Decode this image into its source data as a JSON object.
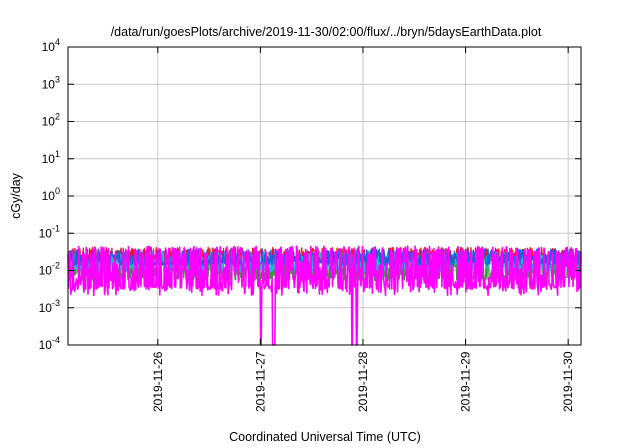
{
  "chart_data": {
    "type": "line",
    "title": "/data/run/goesPlots/archive/2019-11-30/02:00/flux/../bryn/5daysEarthData.plot",
    "xlabel": "Coordinated Universal Time (UTC)",
    "ylabel": "cGy/day",
    "yscale": "log",
    "ylim": [
      0.0001,
      10000
    ],
    "xlim": [
      "2019-11-25T03:00",
      "2019-11-30T03:00"
    ],
    "y_ticks": [
      {
        "value": 0.0001,
        "label_base": "10",
        "label_exp": "-4"
      },
      {
        "value": 0.001,
        "label_base": "10",
        "label_exp": "-3"
      },
      {
        "value": 0.01,
        "label_base": "10",
        "label_exp": "-2"
      },
      {
        "value": 0.1,
        "label_base": "10",
        "label_exp": "-1"
      },
      {
        "value": 1,
        "label_base": "10",
        "label_exp": "0"
      },
      {
        "value": 10,
        "label_base": "10",
        "label_exp": "1"
      },
      {
        "value": 100,
        "label_base": "10",
        "label_exp": "2"
      },
      {
        "value": 1000,
        "label_base": "10",
        "label_exp": "3"
      },
      {
        "value": 10000,
        "label_base": "10",
        "label_exp": "4"
      }
    ],
    "x_ticks": [
      {
        "value": "2019-11-26",
        "label": "2019-11-26"
      },
      {
        "value": "2019-11-27",
        "label": "2019-11-27"
      },
      {
        "value": "2019-11-28",
        "label": "2019-11-28"
      },
      {
        "value": "2019-11-29",
        "label": "2019-11-29"
      },
      {
        "value": "2019-11-30",
        "label": "2019-11-30"
      }
    ],
    "grid": true,
    "legend": "none",
    "series": [
      {
        "color": "#e41a1c",
        "base": 0.028,
        "spread": 0.35,
        "floor": 0.018
      },
      {
        "color": "#2ca02c",
        "base": 0.012,
        "spread": 0.5,
        "floor": 0.006
      },
      {
        "color": "#17becf",
        "base": 0.02,
        "spread": 0.45,
        "floor": 0.01
      },
      {
        "color": "#1f5fd6",
        "base": 0.024,
        "spread": 0.4,
        "floor": 0.015
      },
      {
        "color": "#ff00ff",
        "base": 0.006,
        "spread": 0.9,
        "floor": 0.0035
      }
    ],
    "dropouts": [
      "2019-11-27T00:10",
      "2019-11-27T03:00",
      "2019-11-27T03:20",
      "2019-11-27T21:30",
      "2019-11-27T22:30"
    ]
  }
}
